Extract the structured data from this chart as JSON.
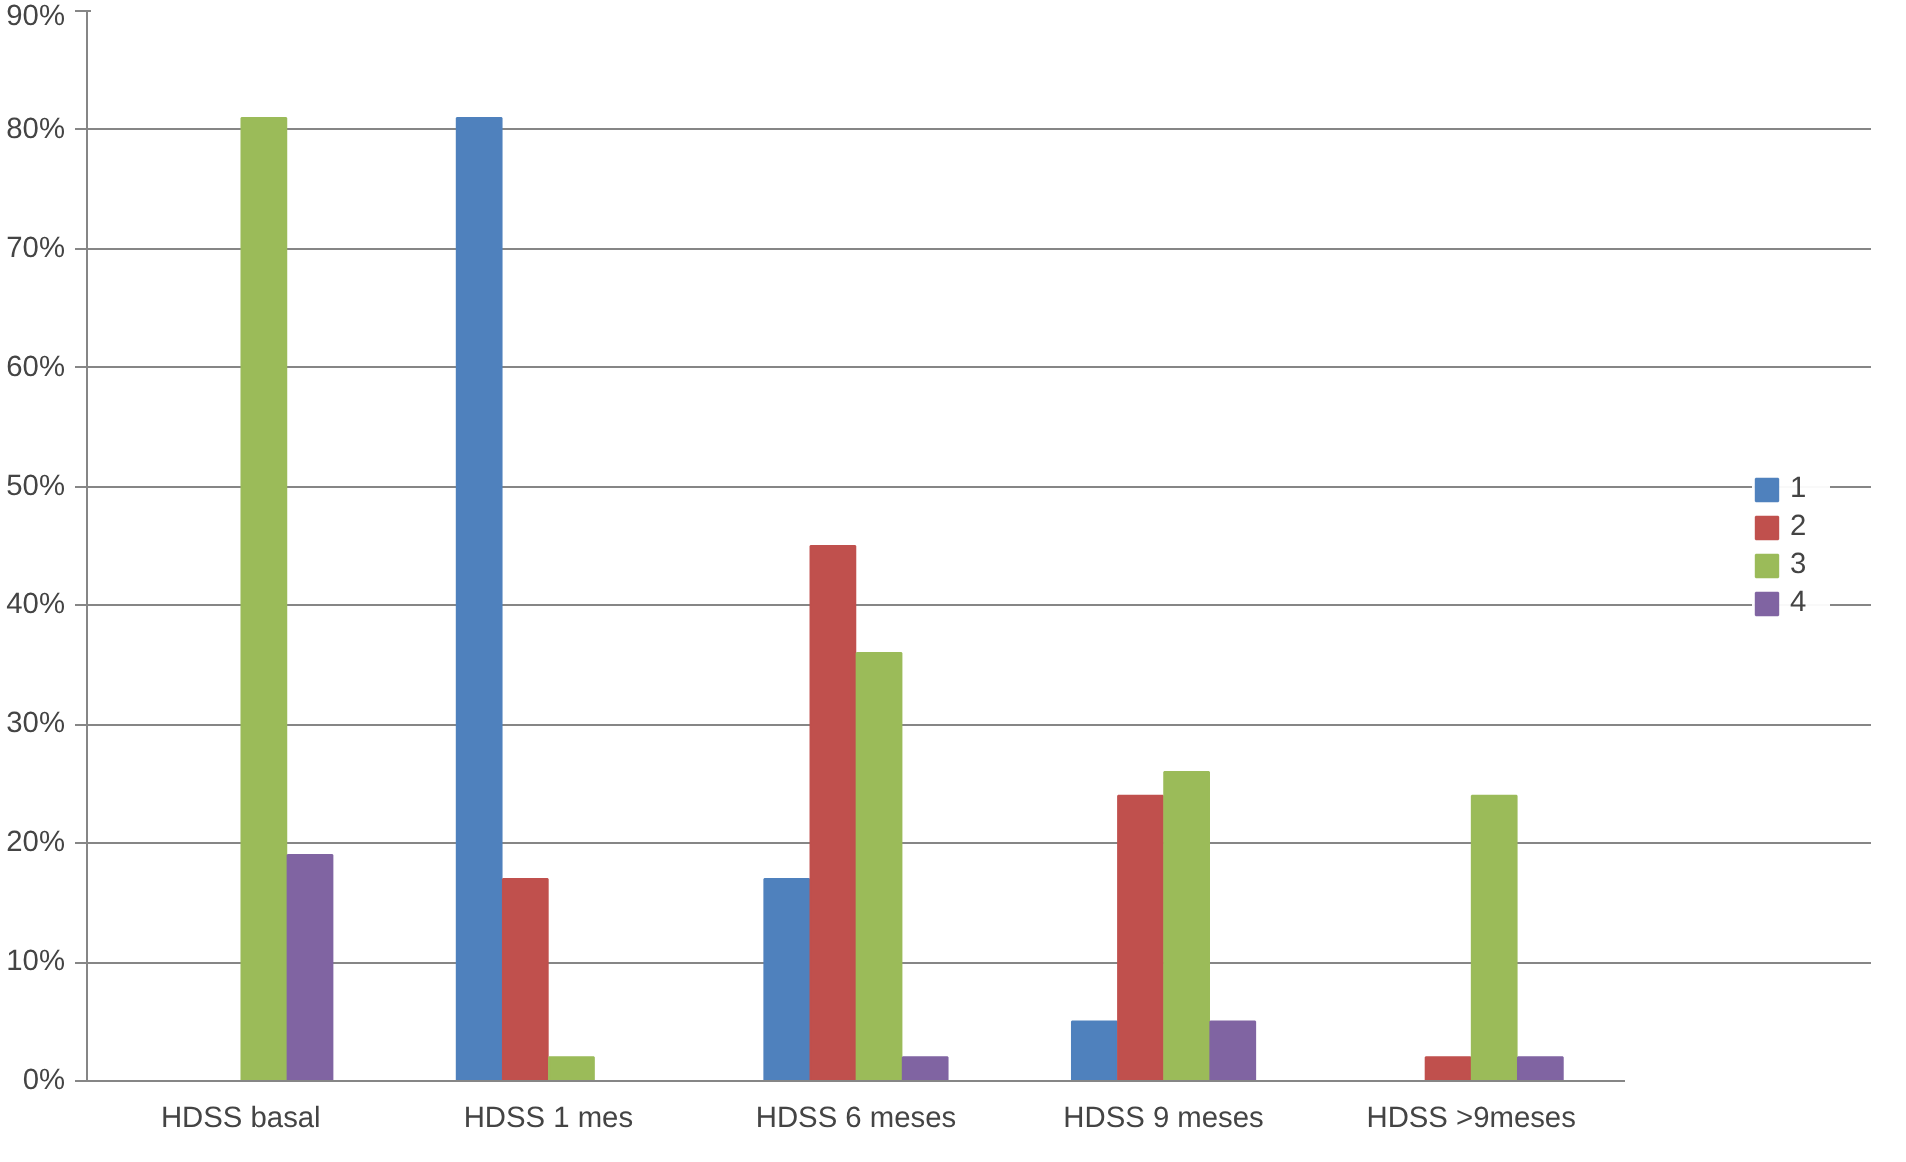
{
  "chart_data": {
    "type": "bar",
    "categories": [
      "HDSS basal",
      "HDSS 1 mes",
      "HDSS 6 meses",
      "HDSS 9 meses",
      "HDSS >9meses"
    ],
    "series": [
      {
        "name": "1",
        "color": "#4f81bd",
        "values": [
          0,
          81,
          17,
          5,
          0
        ]
      },
      {
        "name": "2",
        "color": "#c0504d",
        "values": [
          0,
          17,
          45,
          24,
          2
        ]
      },
      {
        "name": "3",
        "color": "#9bbb59",
        "values": [
          81,
          2,
          36,
          26,
          24
        ]
      },
      {
        "name": "4",
        "color": "#8064a2",
        "values": [
          19,
          0,
          2,
          5,
          2
        ]
      }
    ],
    "ylim": [
      0,
      90
    ],
    "yticks": [
      {
        "value": 0,
        "label": "0%"
      },
      {
        "value": 10,
        "label": "10%"
      },
      {
        "value": 20,
        "label": "20%"
      },
      {
        "value": 30,
        "label": "30%"
      },
      {
        "value": 40,
        "label": "40%"
      },
      {
        "value": 50,
        "label": "50%"
      },
      {
        "value": 60,
        "label": "60%"
      },
      {
        "value": 70,
        "label": "70%"
      },
      {
        "value": 80,
        "label": "80%"
      },
      {
        "value": 90,
        "label": "90%"
      }
    ],
    "grid": "y",
    "legend": "right"
  }
}
